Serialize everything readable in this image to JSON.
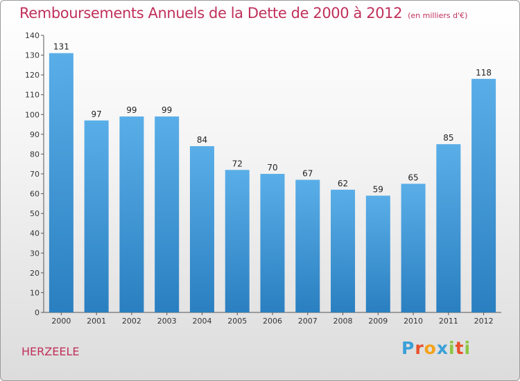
{
  "title": "Remboursements Annuels de la Dette de 2000 à 2012",
  "subtitle": "(en milliers d'€)",
  "city": "HERZEELE",
  "brand": {
    "name": "Proxiti",
    "letters": [
      {
        "ch": "P",
        "color": "#3aa0d8"
      },
      {
        "ch": "r",
        "color": "#e8502a"
      },
      {
        "ch": "o",
        "color": "#f4a21a"
      },
      {
        "ch": "x",
        "color": "#3aa0d8"
      },
      {
        "ch": "i",
        "color": "#8cc63f"
      },
      {
        "ch": "t",
        "color": "#e8502a"
      },
      {
        "ch": "i",
        "color": "#8cc63f"
      }
    ]
  },
  "colors": {
    "bar_light": "#5aaee8",
    "bar_dark": "#2a7fc0",
    "accent": "#c0305a"
  },
  "chart_data": {
    "type": "bar",
    "categories": [
      "2000",
      "2001",
      "2002",
      "2003",
      "2004",
      "2005",
      "2006",
      "2007",
      "2008",
      "2009",
      "2010",
      "2011",
      "2012"
    ],
    "values": [
      131,
      97,
      99,
      99,
      84,
      72,
      70,
      67,
      62,
      59,
      65,
      85,
      118
    ],
    "ylim": [
      0,
      140
    ],
    "yticks": [
      0,
      10,
      20,
      30,
      40,
      50,
      60,
      70,
      80,
      90,
      100,
      110,
      120,
      130,
      140
    ],
    "grid": false,
    "data_labels": true
  }
}
